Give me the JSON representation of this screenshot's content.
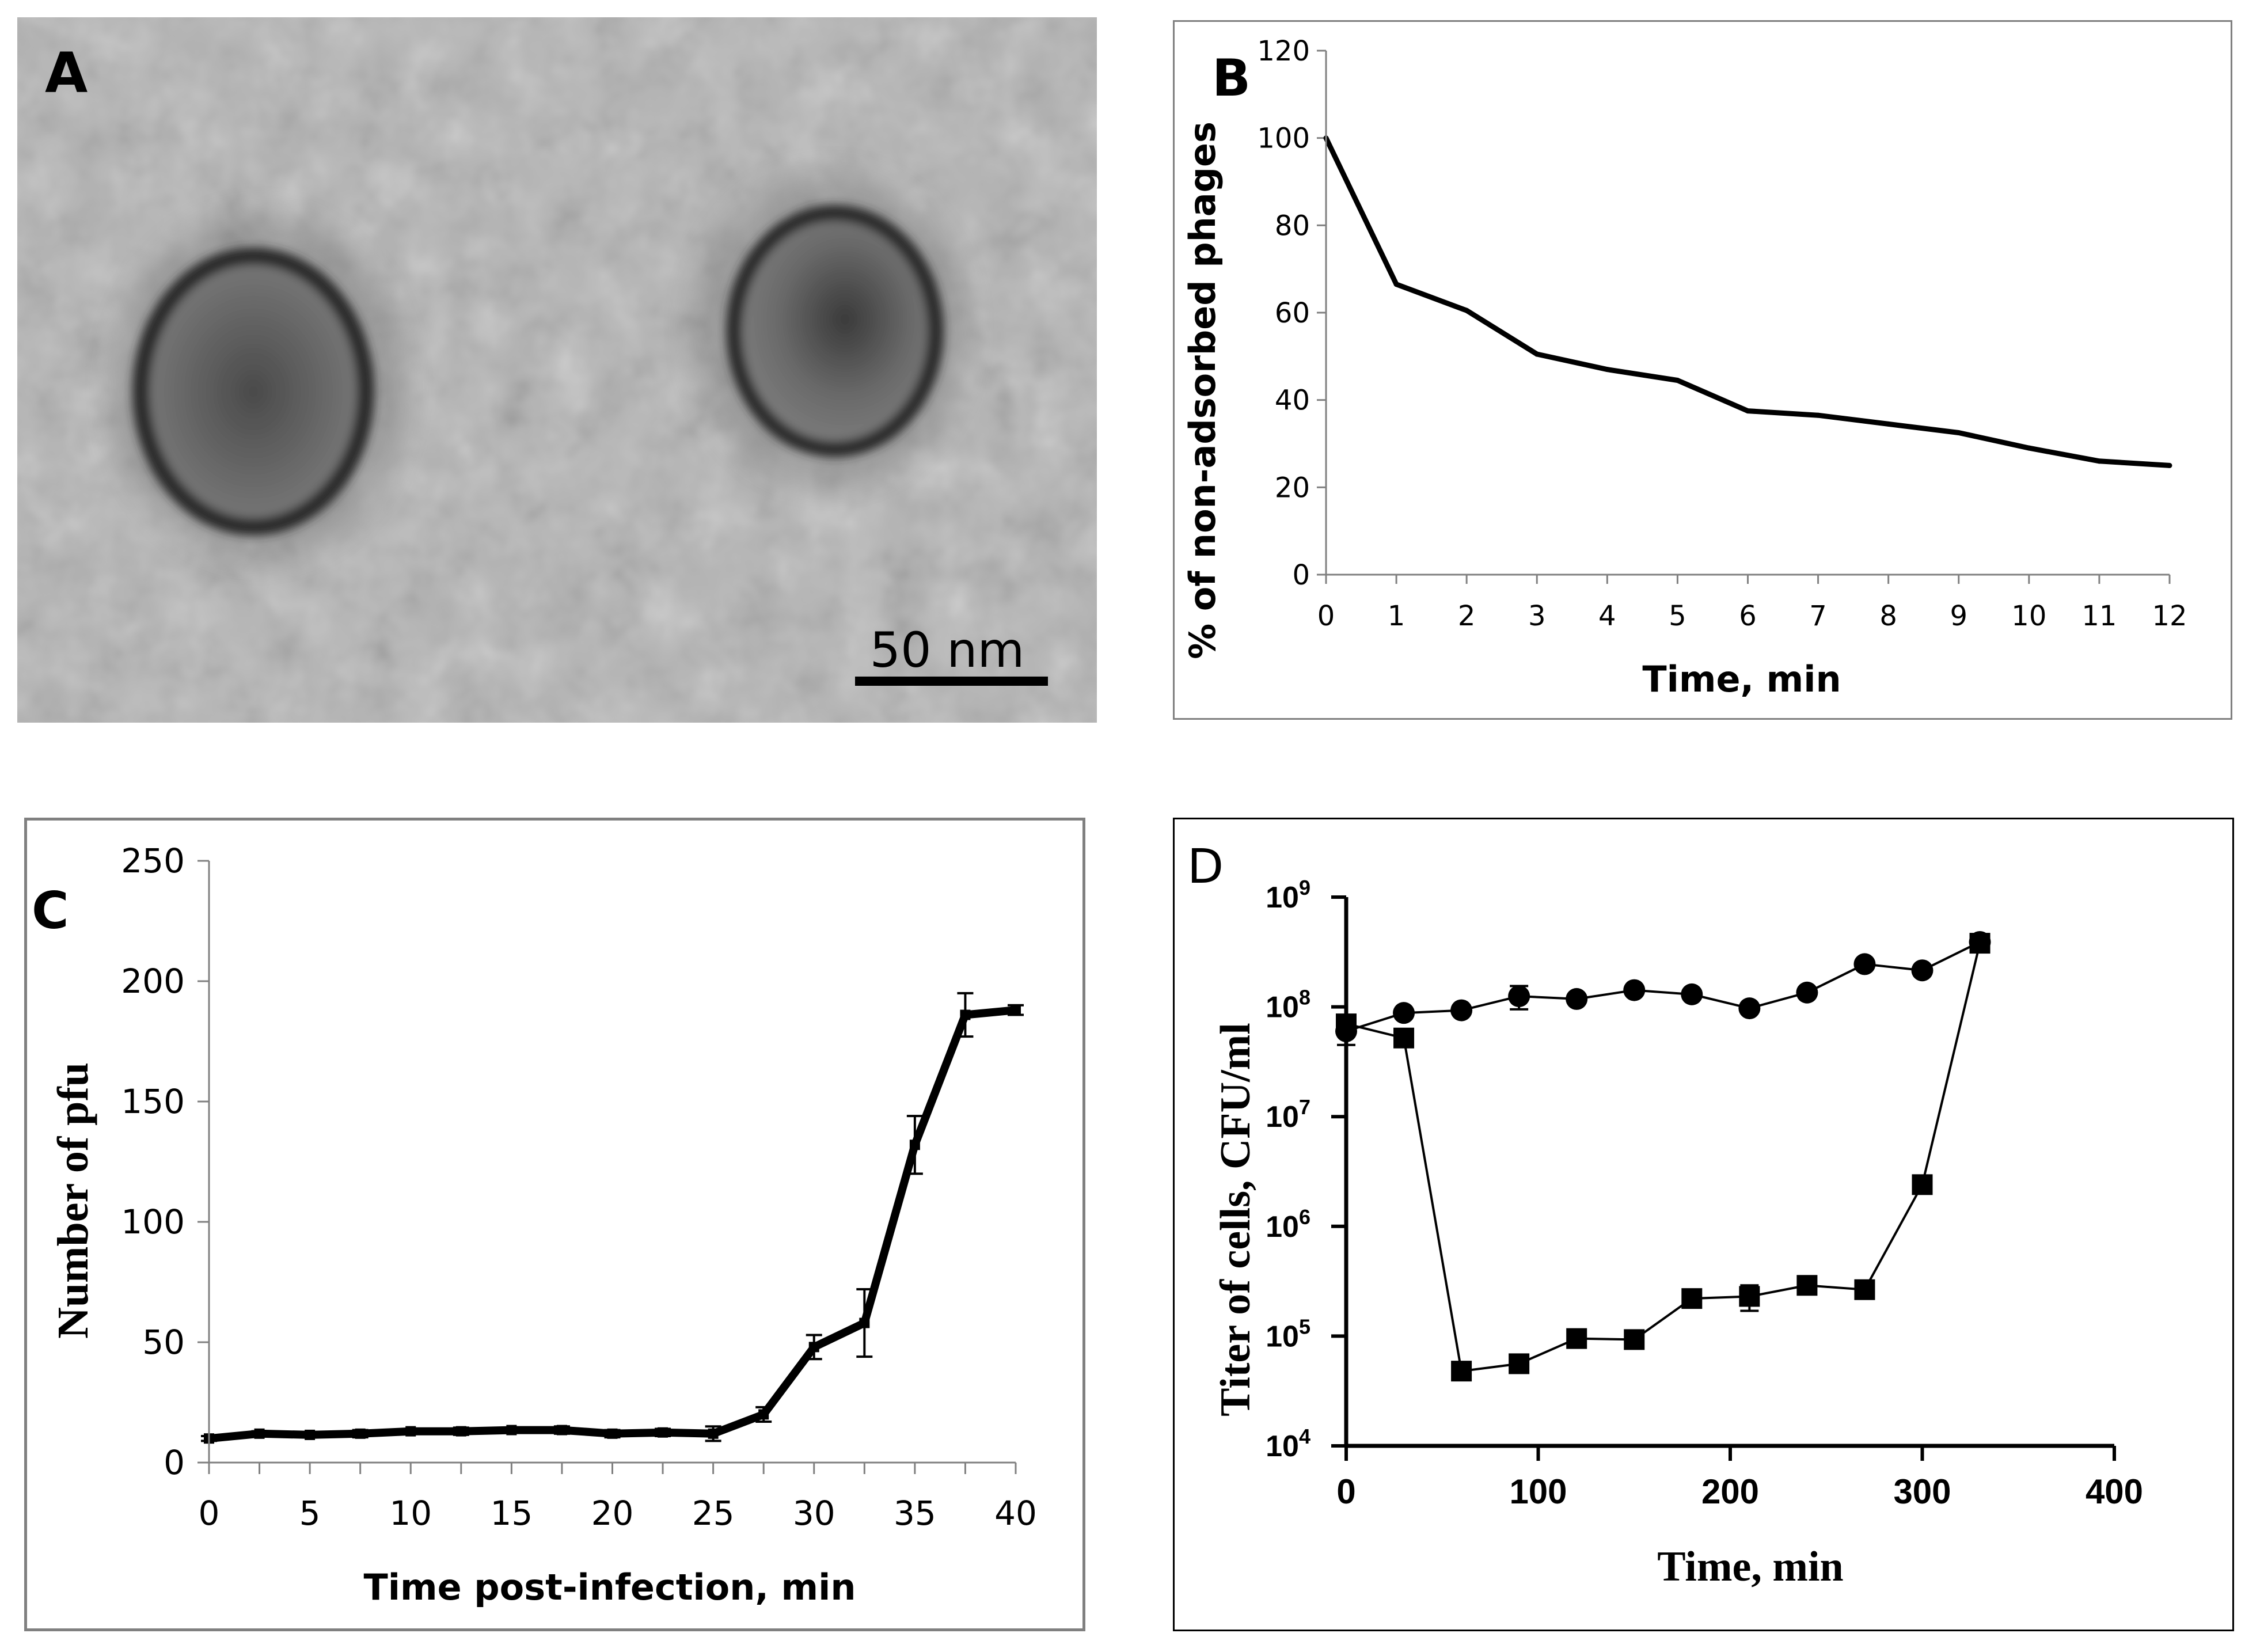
{
  "panel_a": {
    "letter": "A",
    "scale_bar_label": "50 nm",
    "colors": {
      "background": "#a9a9a9",
      "particle": "#3a3a3a"
    }
  },
  "chart_data": [
    {
      "id": "B",
      "type": "line",
      "letter": "B",
      "title": "",
      "xlabel": "Time, min",
      "ylabel": "% of non-adsorbed phages",
      "x": [
        0,
        1,
        2,
        3,
        4,
        5,
        6,
        7,
        8,
        9,
        10,
        11,
        12
      ],
      "xticks": [
        "0",
        "1",
        "2",
        "3",
        "4",
        "5",
        "6",
        "7",
        "8",
        "9",
        "10",
        "11",
        "12"
      ],
      "yticks": [
        "0",
        "20",
        "40",
        "60",
        "80",
        "100",
        "120"
      ],
      "xlim": [
        0,
        12
      ],
      "ylim": [
        0,
        120
      ],
      "series": [
        {
          "name": "non-adsorbed",
          "values": [
            100,
            66.5,
            60.5,
            50.5,
            47,
            44.5,
            37.5,
            36.5,
            34.5,
            32.5,
            29,
            26,
            25
          ]
        }
      ]
    },
    {
      "id": "C",
      "type": "line",
      "letter": "C",
      "title": "",
      "xlabel": "Time post-infection, min",
      "ylabel": "Number of pfu",
      "x": [
        0,
        2.5,
        5,
        7.5,
        10,
        12.5,
        15,
        17.5,
        20,
        22.5,
        25,
        27.5,
        30,
        32.5,
        35,
        37.5,
        40
      ],
      "xticks": [
        "0",
        "5",
        "10",
        "15",
        "20",
        "25",
        "30",
        "35",
        "40"
      ],
      "yticks": [
        "0",
        "50",
        "100",
        "150",
        "200",
        "250"
      ],
      "xlim": [
        0,
        40
      ],
      "ylim": [
        0,
        250
      ],
      "series": [
        {
          "name": "pfu",
          "values": [
            10,
            12,
            11.5,
            12,
            13,
            13,
            13.5,
            13.5,
            12,
            12.5,
            12,
            20,
            48,
            58,
            132,
            186,
            188
          ],
          "errors": [
            1,
            1,
            1,
            1.5,
            1,
            1.5,
            1,
            1.5,
            1.5,
            1.5,
            3,
            3,
            5,
            14,
            12,
            9,
            2
          ]
        }
      ]
    },
    {
      "id": "D",
      "type": "line",
      "letter": "D",
      "title": "",
      "xlabel": "Time, min",
      "ylabel": "Titer of cells, CFU/ml",
      "yscale": "log",
      "xticks": [
        "0",
        "100",
        "200",
        "300",
        "400"
      ],
      "ytick_exponents": [
        4,
        5,
        6,
        7,
        8,
        9
      ],
      "ytick_base": "10",
      "xlim": [
        0,
        400
      ],
      "ylim_exponent": [
        4,
        9
      ],
      "series": [
        {
          "name": "circles",
          "marker": "circle",
          "x": [
            0,
            30,
            60,
            90,
            120,
            150,
            180,
            210,
            240,
            270,
            300,
            330
          ],
          "values": [
            60000000,
            88000000,
            93000000,
            125000000,
            118000000,
            142000000,
            130000000,
            97000000,
            135000000,
            245000000,
            215000000,
            390000000
          ],
          "errors": [
            15000000,
            0,
            0,
            30000000,
            0,
            0,
            0,
            0,
            0,
            0,
            0,
            0
          ]
        },
        {
          "name": "squares",
          "marker": "square",
          "x": [
            0,
            30,
            60,
            90,
            120,
            150,
            180,
            210,
            240,
            270,
            300,
            330
          ],
          "values": [
            70000000,
            52000000,
            48000,
            56000,
            95000,
            93000,
            220000,
            230000,
            290000,
            265000,
            2400000,
            380000000
          ],
          "errors": [
            0,
            8000000,
            0,
            0,
            0,
            0,
            0,
            60000,
            0,
            0,
            0,
            0
          ]
        }
      ]
    }
  ]
}
